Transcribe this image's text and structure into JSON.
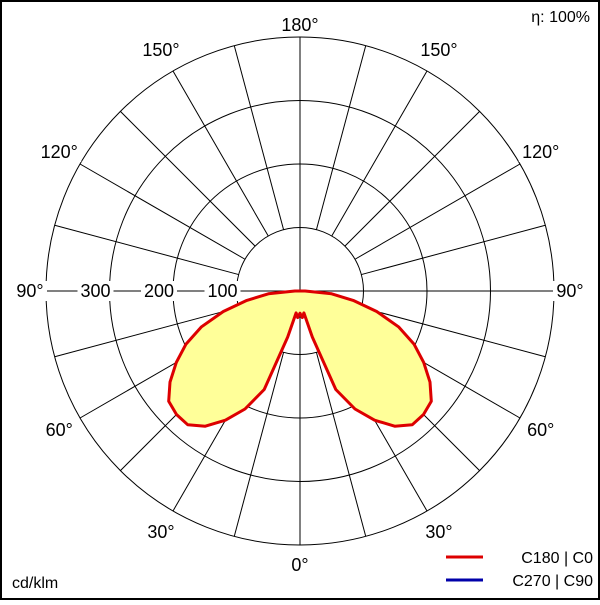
{
  "chart_data": {
    "type": "polar",
    "unit": "cd/klm",
    "efficiency": "η: 100%",
    "rings": [
      100,
      200,
      300,
      400
    ],
    "ring_labels": [
      "100",
      "200",
      "300"
    ],
    "angle_labels": [
      {
        "text": "0°",
        "angle": 0,
        "side": "center"
      },
      {
        "text": "30°",
        "angle": 30,
        "side": "left"
      },
      {
        "text": "30°",
        "angle": 30,
        "side": "right"
      },
      {
        "text": "60°",
        "angle": 60,
        "side": "left"
      },
      {
        "text": "60°",
        "angle": 60,
        "side": "right"
      },
      {
        "text": "90°",
        "angle": 90,
        "side": "left"
      },
      {
        "text": "90°",
        "angle": 90,
        "side": "right"
      },
      {
        "text": "120°",
        "angle": 120,
        "side": "left"
      },
      {
        "text": "120°",
        "angle": 120,
        "side": "right"
      },
      {
        "text": "150°",
        "angle": 150,
        "side": "left"
      },
      {
        "text": "150°",
        "angle": 150,
        "side": "right"
      },
      {
        "text": "180°",
        "angle": 180,
        "side": "center"
      }
    ],
    "series": [
      {
        "name": "C180 | C0",
        "color": "#dd0000",
        "fill": "#ffff99",
        "points": [
          [
            0,
            35
          ],
          [
            5,
            42
          ],
          [
            10,
            35
          ],
          [
            15,
            75
          ],
          [
            20,
            165
          ],
          [
            25,
            205
          ],
          [
            30,
            235
          ],
          [
            35,
            260
          ],
          [
            40,
            275
          ],
          [
            45,
            275
          ],
          [
            50,
            270
          ],
          [
            55,
            250
          ],
          [
            60,
            225
          ],
          [
            65,
            198
          ],
          [
            70,
            165
          ],
          [
            75,
            125
          ],
          [
            80,
            85
          ],
          [
            85,
            50
          ],
          [
            90,
            8
          ]
        ]
      },
      {
        "name": "C270 | C90",
        "color": "#0000aa",
        "points": []
      }
    ]
  }
}
